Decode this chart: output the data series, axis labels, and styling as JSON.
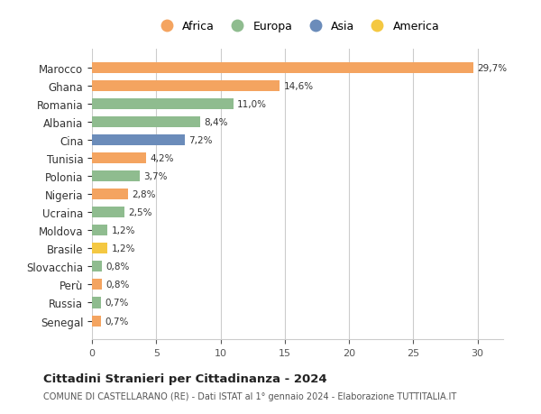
{
  "categories": [
    "Senegal",
    "Russia",
    "Perù",
    "Slovacchia",
    "Brasile",
    "Moldova",
    "Ucraina",
    "Nigeria",
    "Polonia",
    "Tunisia",
    "Cina",
    "Albania",
    "Romania",
    "Ghana",
    "Marocco"
  ],
  "values": [
    0.7,
    0.7,
    0.8,
    0.8,
    1.2,
    1.2,
    2.5,
    2.8,
    3.7,
    4.2,
    7.2,
    8.4,
    11.0,
    14.6,
    29.7
  ],
  "labels": [
    "0,7%",
    "0,7%",
    "0,8%",
    "0,8%",
    "1,2%",
    "1,2%",
    "2,5%",
    "2,8%",
    "3,7%",
    "4,2%",
    "7,2%",
    "8,4%",
    "11,0%",
    "14,6%",
    "29,7%"
  ],
  "colors": [
    "#f4a460",
    "#8fbc8f",
    "#f4a460",
    "#8fbc8f",
    "#f4c842",
    "#8fbc8f",
    "#8fbc8f",
    "#f4a460",
    "#8fbc8f",
    "#f4a460",
    "#6b8cba",
    "#8fbc8f",
    "#8fbc8f",
    "#f4a460",
    "#f4a460"
  ],
  "legend": [
    {
      "label": "Africa",
      "color": "#f4a460"
    },
    {
      "label": "Europa",
      "color": "#8fbc8f"
    },
    {
      "label": "Asia",
      "color": "#6b8cba"
    },
    {
      "label": "America",
      "color": "#f4c842"
    }
  ],
  "xlim": [
    0,
    32
  ],
  "xticks": [
    0,
    5,
    10,
    15,
    20,
    25,
    30
  ],
  "title": "Cittadini Stranieri per Cittadinanza - 2024",
  "subtitle": "COMUNE DI CASTELLARANO (RE) - Dati ISTAT al 1° gennaio 2024 - Elaborazione TUTTITALIA.IT",
  "background_color": "#ffffff",
  "bar_height": 0.6,
  "grid_color": "#cccccc"
}
